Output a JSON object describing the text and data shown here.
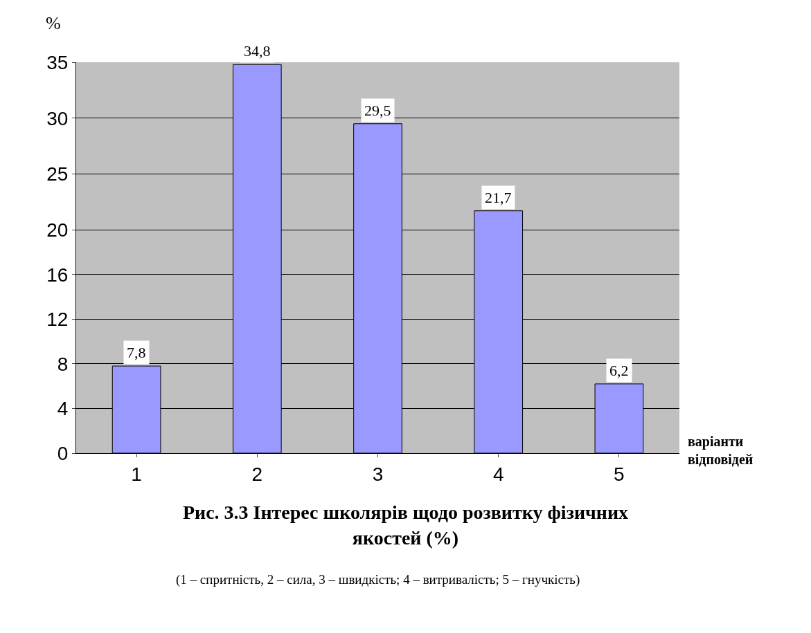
{
  "chart_data": {
    "type": "bar",
    "title": "Рис. 3.3 Інтерес школярів щодо розвитку фізичних якостей (%)",
    "annotations": [
      "(1 – спритність, 2 – сила, 3 – швидкість; 4 – витривалість; 5 – гнучкість)"
    ],
    "ylabel": "%",
    "xlabel": "варіанти відповідей",
    "categories": [
      "1",
      "2",
      "3",
      "4",
      "5"
    ],
    "values": [
      7.8,
      34.8,
      29.5,
      21.7,
      6.2
    ],
    "value_labels": [
      "7,8",
      "34,8",
      "29,5",
      "21,7",
      "6,2"
    ],
    "color": "#9999ff",
    "ylim": [
      0,
      35
    ],
    "yticks": [
      0,
      4,
      8,
      12,
      16,
      20,
      25,
      30,
      35
    ],
    "grid": "y",
    "legend": false
  }
}
